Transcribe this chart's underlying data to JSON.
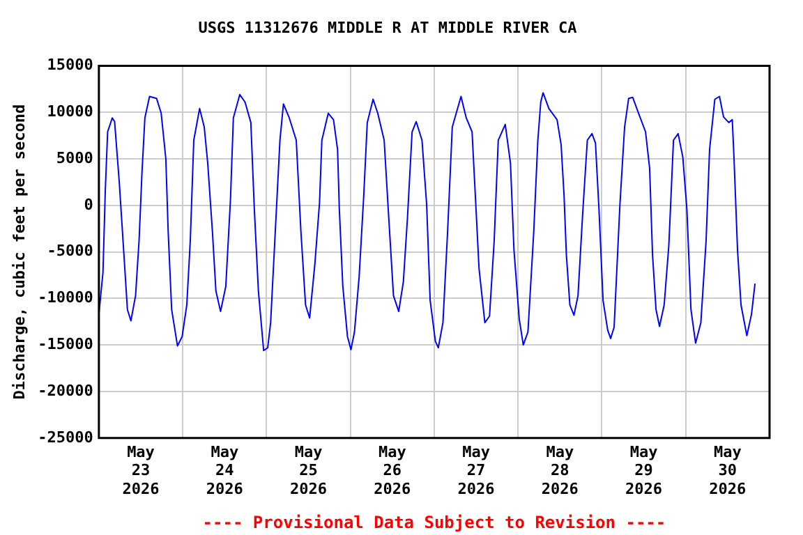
{
  "chart_data": {
    "type": "line",
    "title": "USGS 11312676 MIDDLE R AT MIDDLE RIVER CA",
    "ylabel": "Discharge, cubic feet per second",
    "annotations": [
      "---- Provisional Data Subject to Revision ----"
    ],
    "x": [
      "2026-05-23T00:00",
      "2026-05-23T01:10",
      "2026-05-23T01:50",
      "2026-05-23T02:30",
      "2026-05-23T03:50",
      "2026-05-23T04:30",
      "2026-05-23T05:50",
      "2026-05-23T07:10",
      "2026-05-23T08:10",
      "2026-05-23T09:10",
      "2026-05-23T10:30",
      "2026-05-23T11:30",
      "2026-05-23T12:20",
      "2026-05-23T13:10",
      "2026-05-23T14:30",
      "2026-05-23T16:30",
      "2026-05-23T17:50",
      "2026-05-23T19:10",
      "2026-05-23T19:50",
      "2026-05-23T20:50",
      "2026-05-23T22:30",
      "2026-05-23T23:50",
      "2026-05-24T01:10",
      "2026-05-24T02:10",
      "2026-05-24T03:10",
      "2026-05-24T04:50",
      "2026-05-24T06:10",
      "2026-05-24T07:10",
      "2026-05-24T08:30",
      "2026-05-24T09:30",
      "2026-05-24T10:50",
      "2026-05-24T12:20",
      "2026-05-24T13:40",
      "2026-05-24T14:30",
      "2026-05-24T16:20",
      "2026-05-24T17:50",
      "2026-05-24T19:30",
      "2026-05-24T20:30",
      "2026-05-24T21:40",
      "2026-05-24T23:10",
      "2026-05-25T00:20",
      "2026-05-25T01:10",
      "2026-05-25T02:30",
      "2026-05-25T03:50",
      "2026-05-25T04:50",
      "2026-05-25T06:30",
      "2026-05-25T08:30",
      "2026-05-25T09:50",
      "2026-05-25T11:10",
      "2026-05-25T12:20",
      "2026-05-25T13:50",
      "2026-05-25T15:10",
      "2026-05-25T15:50",
      "2026-05-25T17:40",
      "2026-05-25T19:10",
      "2026-05-25T20:20",
      "2026-05-25T20:50",
      "2026-05-25T21:50",
      "2026-05-25T23:10",
      "2026-05-26T00:10",
      "2026-05-26T01:10",
      "2026-05-26T02:30",
      "2026-05-26T03:50",
      "2026-05-26T04:50",
      "2026-05-26T06:30",
      "2026-05-26T07:50",
      "2026-05-26T09:40",
      "2026-05-26T10:50",
      "2026-05-26T12:20",
      "2026-05-26T13:50",
      "2026-05-26T15:10",
      "2026-05-26T16:20",
      "2026-05-26T17:40",
      "2026-05-26T18:50",
      "2026-05-26T20:30",
      "2026-05-26T21:50",
      "2026-05-26T22:50",
      "2026-05-27T00:20",
      "2026-05-27T01:10",
      "2026-05-27T02:30",
      "2026-05-27T03:50",
      "2026-05-27T05:10",
      "2026-05-27T07:40",
      "2026-05-27T09:10",
      "2026-05-27T10:50",
      "2026-05-27T11:50",
      "2026-05-27T12:50",
      "2026-05-27T14:30",
      "2026-05-27T15:50",
      "2026-05-27T17:10",
      "2026-05-27T18:20",
      "2026-05-27T20:20",
      "2026-05-27T21:50",
      "2026-05-27T22:50",
      "2026-05-28T00:20",
      "2026-05-28T01:30",
      "2026-05-28T02:50",
      "2026-05-28T04:30",
      "2026-05-28T05:40",
      "2026-05-28T06:30",
      "2026-05-28T07:10",
      "2026-05-28T08:50",
      "2026-05-28T11:10",
      "2026-05-28T12:20",
      "2026-05-28T13:10",
      "2026-05-28T13:50",
      "2026-05-28T14:50",
      "2026-05-28T16:00",
      "2026-05-28T17:10",
      "2026-05-28T18:30",
      "2026-05-28T19:50",
      "2026-05-28T21:10",
      "2026-05-28T22:10",
      "2026-05-28T23:10",
      "2026-05-29T00:20",
      "2026-05-29T01:40",
      "2026-05-29T02:30",
      "2026-05-29T03:30",
      "2026-05-29T05:10",
      "2026-05-29T06:30",
      "2026-05-29T07:40",
      "2026-05-29T08:50",
      "2026-05-29T10:30",
      "2026-05-29T12:30",
      "2026-05-29T13:40",
      "2026-05-29T14:30",
      "2026-05-29T15:30",
      "2026-05-29T16:30",
      "2026-05-29T17:50",
      "2026-05-29T19:10",
      "2026-05-29T20:30",
      "2026-05-29T21:50",
      "2026-05-29T23:10",
      "2026-05-30T00:20",
      "2026-05-30T01:30",
      "2026-05-30T02:50",
      "2026-05-30T04:20",
      "2026-05-30T05:50",
      "2026-05-30T06:50",
      "2026-05-30T08:20",
      "2026-05-30T09:40",
      "2026-05-30T10:50",
      "2026-05-30T12:20",
      "2026-05-30T13:20",
      "2026-05-30T13:50",
      "2026-05-30T14:50",
      "2026-05-30T15:50",
      "2026-05-30T17:30",
      "2026-05-30T18:50",
      "2026-05-30T19:50"
    ],
    "series": [
      {
        "color": "#0000ff",
        "values": [
          -11700,
          -7200,
          1600,
          7900,
          9400,
          9000,
          2500,
          -5300,
          -11200,
          -12400,
          -9700,
          -3800,
          3500,
          9400,
          11700,
          11500,
          9900,
          5000,
          -2800,
          -11200,
          -15100,
          -14100,
          -10700,
          -3800,
          7000,
          10400,
          8400,
          4500,
          -2800,
          -9200,
          -11400,
          -8700,
          600,
          9400,
          11900,
          11100,
          8900,
          -400,
          -9200,
          -15600,
          -15300,
          -12600,
          -2800,
          7000,
          10900,
          9400,
          7000,
          -2800,
          -10700,
          -12100,
          -6300,
          300,
          7000,
          9900,
          9200,
          6000,
          -400,
          -8700,
          -14100,
          -15500,
          -13600,
          -7700,
          1100,
          8900,
          11400,
          9900,
          7000,
          -400,
          -9700,
          -11400,
          -8200,
          -1400,
          7900,
          9000,
          7000,
          100,
          -10200,
          -14600,
          -15300,
          -12600,
          -2800,
          8400,
          11700,
          9400,
          7900,
          600,
          -6800,
          -12600,
          -11900,
          -3800,
          7000,
          8700,
          4500,
          -4800,
          -12200,
          -15000,
          -13600,
          -2800,
          7000,
          11100,
          12100,
          10400,
          9200,
          6500,
          1100,
          -5300,
          -10700,
          -11800,
          -9700,
          -900,
          7000,
          7700,
          6700,
          -400,
          -10200,
          -13400,
          -14300,
          -13100,
          100,
          8400,
          11500,
          11600,
          9900,
          7900,
          4000,
          -5300,
          -11200,
          -13000,
          -10700,
          -4300,
          7000,
          7700,
          5200,
          -400,
          -11200,
          -14800,
          -12600,
          -3800,
          6000,
          11400,
          11700,
          9500,
          8900,
          9200,
          5000,
          -4800,
          -10700,
          -14000,
          -11700,
          -8400
        ]
      }
    ],
    "xlim": [
      "2026-05-23T00:00",
      "2026-05-31T00:00"
    ],
    "xticks": [
      {
        "value": "2026-05-23T00:00",
        "label": null
      },
      {
        "value": "2026-05-23T12:00",
        "label": "May 23 2026"
      },
      {
        "value": "2026-05-24T00:00",
        "label": null
      },
      {
        "value": "2026-05-24T12:00",
        "label": "May 24 2026"
      },
      {
        "value": "2026-05-25T00:00",
        "label": null
      },
      {
        "value": "2026-05-25T12:00",
        "label": "May 25 2026"
      },
      {
        "value": "2026-05-26T00:00",
        "label": null
      },
      {
        "value": "2026-05-26T12:00",
        "label": "May 26 2026"
      },
      {
        "value": "2026-05-27T00:00",
        "label": null
      },
      {
        "value": "2026-05-27T12:00",
        "label": "May 27 2026"
      },
      {
        "value": "2026-05-28T00:00",
        "label": null
      },
      {
        "value": "2026-05-28T12:00",
        "label": "May 28 2026"
      },
      {
        "value": "2026-05-29T00:00",
        "label": null
      },
      {
        "value": "2026-05-29T12:00",
        "label": "May 29 2026"
      },
      {
        "value": "2026-05-30T00:00",
        "label": null
      },
      {
        "value": "2026-05-30T12:00",
        "label": "May 30 2026"
      },
      {
        "value": "2026-05-31T00:00",
        "label": null
      }
    ],
    "ylim": [
      -25000,
      15000
    ],
    "yticks": [
      -25000,
      -20000,
      -15000,
      -10000,
      -5000,
      0,
      5000,
      10000,
      15000
    ],
    "grid": true,
    "legend": false,
    "marker": "none",
    "line_style": "solid"
  }
}
